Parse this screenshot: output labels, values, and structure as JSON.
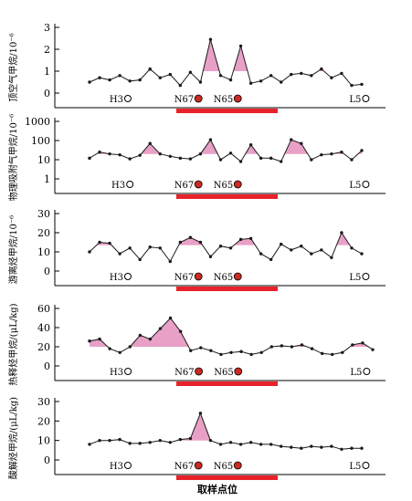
{
  "chart_data": [
    {
      "type": "line",
      "ylabel": "顶空气甲烷/10⁻⁶",
      "yscale": "linear",
      "ylim": [
        0,
        3
      ],
      "yticks": [
        "0",
        "1",
        "2",
        "3"
      ],
      "threshold": 1,
      "values": [
        0.5,
        0.7,
        0.6,
        0.8,
        0.55,
        0.6,
        1.1,
        0.7,
        0.85,
        0.35,
        0.95,
        0.5,
        2.45,
        0.8,
        0.6,
        2.15,
        0.45,
        0.55,
        0.8,
        0.5,
        0.85,
        0.9,
        0.8,
        1.1,
        0.7,
        0.9,
        0.35,
        0.4
      ],
      "stations": [
        {
          "label": "H3",
          "x": 3.8,
          "filled": false
        },
        {
          "label": "N67",
          "x": 10.8,
          "filled": true
        },
        {
          "label": "N65",
          "x": 14.7,
          "filled": true
        },
        {
          "label": "L5",
          "x": 27.4,
          "filled": false
        }
      ]
    },
    {
      "type": "line",
      "ylabel": "物理吸附气甲烷/10⁻⁶",
      "yscale": "log",
      "ylim": [
        1,
        1000
      ],
      "yticks": [
        "1",
        "10",
        "100",
        "1000"
      ],
      "threshold": 20,
      "values": [
        12,
        25,
        20,
        18,
        11,
        17,
        70,
        20,
        15,
        12,
        11,
        20,
        110,
        10,
        22,
        8,
        60,
        12,
        12,
        8,
        110,
        70,
        10,
        18,
        20,
        25,
        10,
        30
      ],
      "stations": [
        {
          "label": "H3",
          "x": 4.0,
          "filled": false
        },
        {
          "label": "N67",
          "x": 10.8,
          "filled": true
        },
        {
          "label": "N65",
          "x": 14.7,
          "filled": true
        },
        {
          "label": "L5",
          "x": 27.4,
          "filled": false
        }
      ]
    },
    {
      "type": "line",
      "ylabel": "游离烃甲烷/10⁻⁶",
      "yscale": "linear",
      "ylim": [
        0,
        30
      ],
      "yticks": [
        "0",
        "10",
        "20",
        "30"
      ],
      "threshold": 13.5,
      "values": [
        10,
        15,
        14.5,
        9,
        12,
        6,
        12.5,
        12,
        5,
        15,
        17.5,
        15,
        7.5,
        13,
        12,
        16.5,
        17,
        9,
        6,
        14,
        11,
        13,
        9,
        11,
        7,
        20,
        12,
        9
      ],
      "stations": [
        {
          "label": "H3",
          "x": 3.8,
          "filled": false
        },
        {
          "label": "N67",
          "x": 10.8,
          "filled": true
        },
        {
          "label": "N65",
          "x": 14.7,
          "filled": true
        },
        {
          "label": "L5",
          "x": 27.4,
          "filled": false
        }
      ]
    },
    {
      "type": "line",
      "ylabel": "热释烃甲烷/(μL/kg)",
      "yscale": "linear",
      "ylim": [
        0,
        60
      ],
      "yticks": [
        "0",
        "20",
        "40",
        "60"
      ],
      "threshold": 20,
      "values": [
        26,
        28,
        18,
        14,
        20,
        32,
        28,
        39,
        50,
        36,
        16,
        19,
        16,
        12,
        14,
        15,
        12,
        14,
        20,
        21,
        20,
        22,
        18,
        13,
        12,
        14,
        22,
        24,
        17
      ],
      "stations": [
        {
          "label": "H3",
          "x": 3.8,
          "filled": false
        },
        {
          "label": "N67",
          "x": 10.8,
          "filled": true
        },
        {
          "label": "N65",
          "x": 14.7,
          "filled": true
        },
        {
          "label": "L5",
          "x": 27.4,
          "filled": false
        }
      ]
    },
    {
      "type": "line",
      "ylabel": "酸解烃甲烷/(μL/kg)",
      "yscale": "linear",
      "ylim": [
        0,
        30
      ],
      "yticks": [
        "0",
        "10",
        "20",
        "30"
      ],
      "threshold": 10,
      "values": [
        8,
        10,
        10,
        10.5,
        8.5,
        8.5,
        9,
        10,
        9,
        10.5,
        11,
        24,
        10,
        8,
        9,
        8,
        9,
        8,
        8,
        7,
        6.5,
        6,
        7,
        6.5,
        7,
        5.5,
        6,
        6
      ],
      "stations": [
        {
          "label": "H3",
          "x": 3.8,
          "filled": false
        },
        {
          "label": "N67",
          "x": 10.8,
          "filled": true
        },
        {
          "label": "N65",
          "x": 14.7,
          "filled": true
        },
        {
          "label": "L5",
          "x": 27.4,
          "filled": false
        }
      ]
    }
  ],
  "colors": {
    "line": "#1a1a1a",
    "anomaly_fill": "#e8a0c6",
    "bar": "#e8222a",
    "filled_station": "#cc2a22"
  },
  "xlabel": "取样点位"
}
